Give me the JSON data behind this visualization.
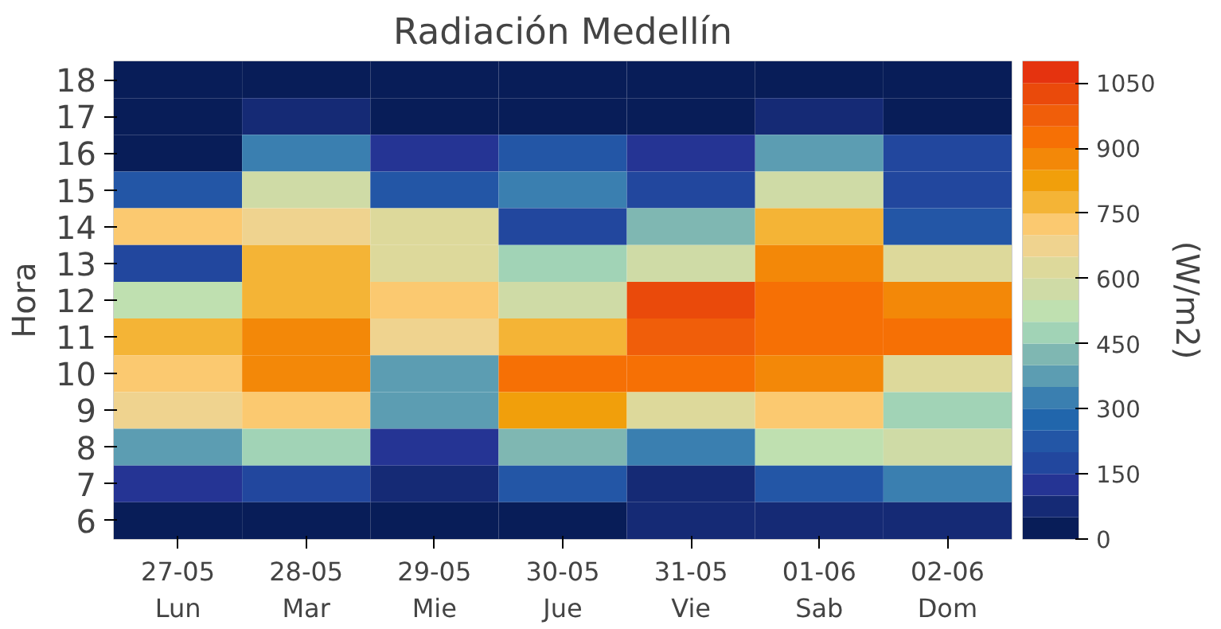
{
  "chart_data": {
    "type": "heatmap",
    "title": "Radiación Medellín",
    "ylabel": "Hora",
    "clabel": "(W/m2)",
    "categories": [
      "27-05\nLun",
      "28-05\nMar",
      "29-05\nMie",
      "30-05\nJue",
      "31-05\nVie",
      "01-06\nSab",
      "02-06\nDom"
    ],
    "y_categories": [
      "18",
      "17",
      "16",
      "15",
      "14",
      "13",
      "12",
      "11",
      "10",
      "9",
      "8",
      "7",
      "6"
    ],
    "cells": [
      [
        25,
        25,
        25,
        25,
        25,
        25,
        25
      ],
      [
        25,
        75,
        25,
        25,
        25,
        75,
        25
      ],
      [
        25,
        325,
        125,
        225,
        125,
        375,
        175
      ],
      [
        225,
        575,
        225,
        325,
        175,
        575,
        175
      ],
      [
        725,
        675,
        625,
        175,
        425,
        775,
        225
      ],
      [
        175,
        775,
        625,
        475,
        575,
        875,
        625
      ],
      [
        525,
        775,
        725,
        575,
        1025,
        925,
        875
      ],
      [
        775,
        875,
        675,
        775,
        975,
        925,
        925
      ],
      [
        725,
        875,
        375,
        925,
        925,
        875,
        625
      ],
      [
        675,
        725,
        375,
        825,
        625,
        725,
        475
      ],
      [
        375,
        475,
        125,
        425,
        325,
        525,
        575
      ],
      [
        125,
        175,
        75,
        225,
        75,
        225,
        325
      ],
      [
        25,
        25,
        25,
        25,
        75,
        75,
        75
      ]
    ],
    "clim": [
      0,
      1100
    ],
    "cticks": [
      0,
      150,
      300,
      450,
      600,
      750,
      900,
      1050
    ]
  }
}
